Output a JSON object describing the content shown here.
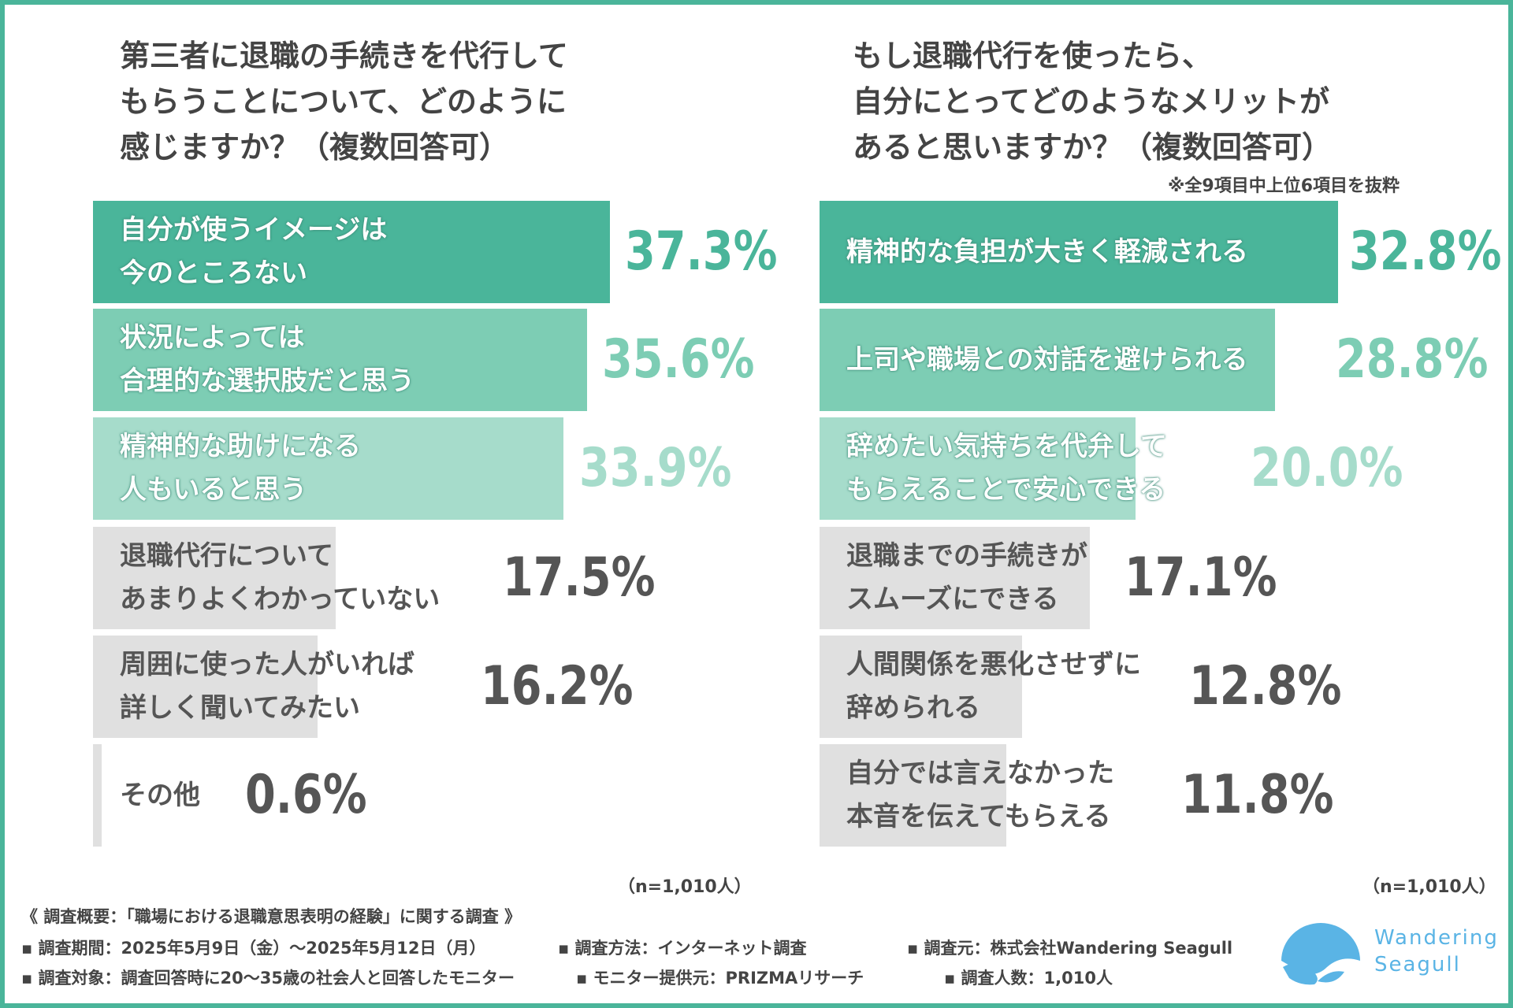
{
  "chart_data": [
    {
      "type": "bar",
      "orientation": "horizontal",
      "title": [
        "第三者に退職の手続きを代行して",
        "もらうことについて、どのように",
        "感じますか？（複数回答可）"
      ],
      "categories": [
        [
          "自分が使うイメージは",
          "今のところない"
        ],
        [
          "状況によっては",
          "合理的な選択肢だと思う"
        ],
        [
          "精神的な助けになる",
          "人もいると思う"
        ],
        [
          "退職代行について",
          "あまりよくわかっていない"
        ],
        [
          "周囲に使った人がいれば",
          "詳しく聞いてみたい"
        ],
        [
          "その他"
        ]
      ],
      "values": [
        37.3,
        35.6,
        33.9,
        17.5,
        16.2,
        0.6
      ],
      "value_labels": [
        "37.3%",
        "35.6%",
        "33.9%",
        "17.5%",
        "16.2%",
        "0.6%"
      ],
      "sample": "（n=1,010人）"
    },
    {
      "type": "bar",
      "orientation": "horizontal",
      "title": [
        "もし退職代行を使ったら、",
        "自分にとってどのようなメリットが",
        "あると思いますか？（複数回答可）"
      ],
      "note": "※全9項目中上位6項目を抜粋",
      "categories": [
        [
          "精神的な負担が大きく軽減される"
        ],
        [
          "上司や職場との対話を避けられる"
        ],
        [
          "辞めたい気持ちを代弁して",
          "もらえることで安心できる"
        ],
        [
          "退職までの手続きが",
          "スムーズにできる"
        ],
        [
          "人間関係を悪化させずに",
          "辞められる"
        ],
        [
          "自分では言えなかった",
          "本音を伝えてもらえる"
        ]
      ],
      "values": [
        32.8,
        28.8,
        20.0,
        17.1,
        12.8,
        11.8
      ],
      "value_labels": [
        "32.8%",
        "28.8%",
        "20.0%",
        "17.1%",
        "12.8%",
        "11.8%"
      ],
      "sample": "（n=1,010人）"
    }
  ],
  "colors": {
    "rank1": "#4ab59a",
    "rank2": "#7dcdb4",
    "rank3": "#a6dccb",
    "other": "#e0e0e0",
    "other_text": "#555555",
    "frame": "#4ab59a",
    "logo": "#5ab4e5"
  },
  "footer": {
    "heading": "《 調査概要：「職場における退職意思表明の経験」に関する調査 》",
    "period": "▪ 調査期間：2025年5月9日（金）～2025年5月12日（月）",
    "method": "▪ 調査方法：インターネット調査",
    "source": "▪ 調査元：株式会社Wandering Seagull",
    "target": "▪ 調査対象：調査回答時に20～35歳の社会人と回答したモニター",
    "provider": "▪ モニター提供元：PRIZMAリサーチ",
    "count": "▪ 調査人数：1,010人"
  },
  "logo": {
    "line1": "Wandering",
    "line2": "Seagull"
  }
}
